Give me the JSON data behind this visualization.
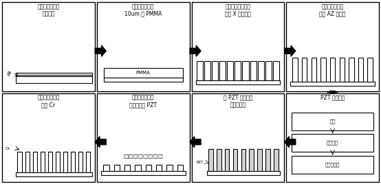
{
  "fig_width": 5.54,
  "fig_height": 2.68,
  "dpi": 100,
  "bg_color": "#ffffff",
  "boxes": [
    {
      "id": 0,
      "row": 0,
      "col": 0,
      "title": "在平整的钛片上\n溅射铂层",
      "diagram": "layers_pt_ti"
    },
    {
      "id": 1,
      "row": 0,
      "col": 1,
      "title": "在铂层表面附着\n10um 的 PMMA",
      "diagram": "pmma_box"
    },
    {
      "id": 2,
      "row": 0,
      "col": 2,
      "title": "利用同步辐射光源\n进行 X 射线光刻",
      "diagram": "xray_pattern"
    },
    {
      "id": 3,
      "row": 0,
      "col": 3,
      "title": "在阵列表面附着\n曝光 AZ 光刻胶",
      "diagram": "az_pattern"
    },
    {
      "id": 4,
      "row": 1,
      "col": 0,
      "title": "在阵列表面溅射\n纳米 Cr",
      "diagram": "cr_pattern"
    },
    {
      "id": 5,
      "row": 1,
      "col": 1,
      "title": "用洗胶液剥离阵\n列上表面的 PZT",
      "diagram": "pzt_stripped"
    },
    {
      "id": 6,
      "row": 1,
      "col": 2,
      "title": "用 PZT 填充二维\n微结构阵列",
      "diagram": "pzt_filled"
    },
    {
      "id": 7,
      "row": 1,
      "col": 3,
      "title": "PZT 制备工艺",
      "diagram": "pzt_process"
    }
  ],
  "font_size_title": 5.5
}
